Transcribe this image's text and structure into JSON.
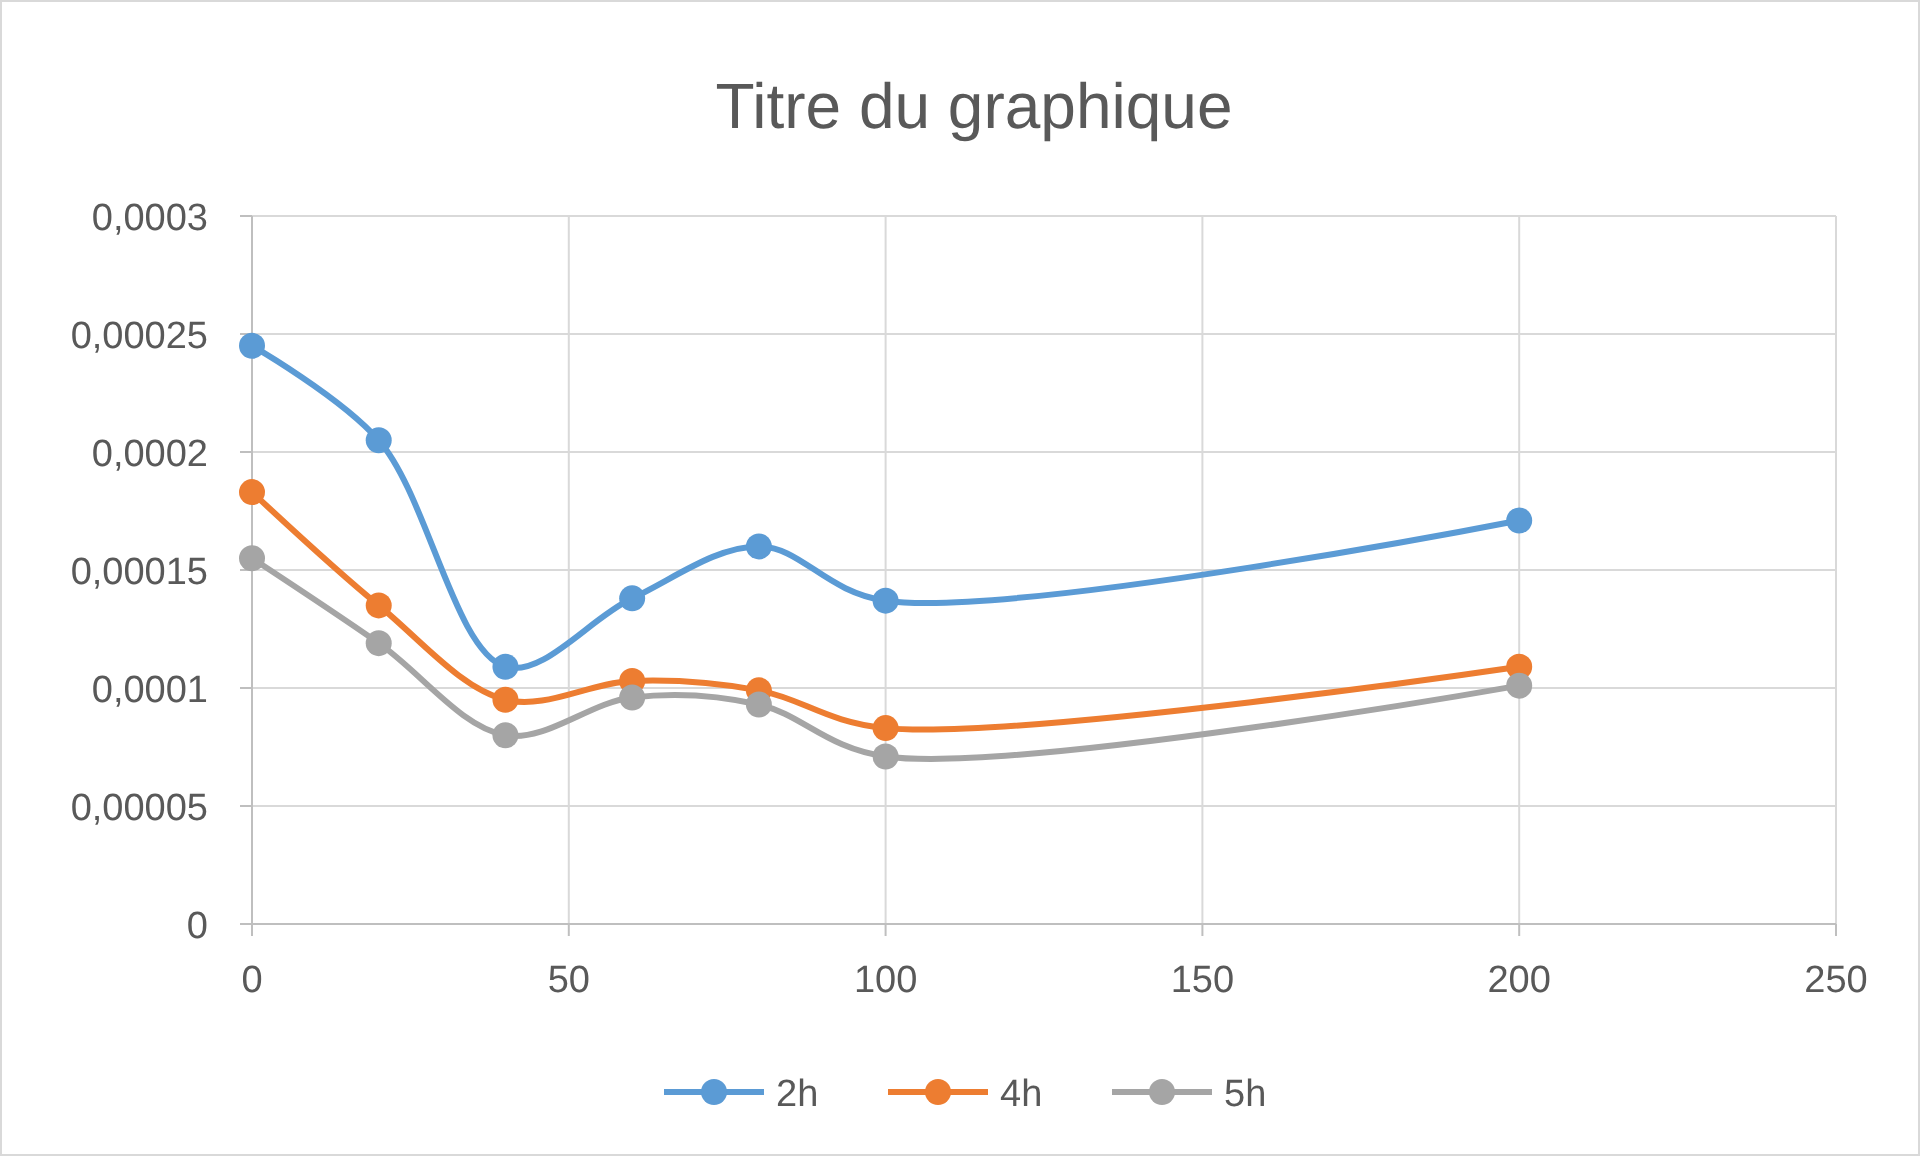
{
  "chart_data": {
    "type": "line",
    "title": "Titre du graphique",
    "x": [
      0,
      20,
      40,
      60,
      80,
      100,
      200
    ],
    "series": [
      {
        "name": "2h",
        "color": "#5b9bd5",
        "values": [
          0.000245,
          0.000205,
          0.000109,
          0.000138,
          0.00016,
          0.000137,
          0.000171
        ]
      },
      {
        "name": "4h",
        "color": "#ed7d31",
        "values": [
          0.000183,
          0.000135,
          9.5e-05,
          0.000103,
          9.9e-05,
          8.3e-05,
          0.000109
        ]
      },
      {
        "name": "5h",
        "color": "#a5a5a5",
        "values": [
          0.000155,
          0.000119,
          8e-05,
          9.6e-05,
          9.3e-05,
          7.1e-05,
          0.000101
        ]
      }
    ],
    "xlim": [
      0,
      250
    ],
    "xticks": [
      0,
      50,
      100,
      150,
      200,
      250
    ],
    "ylim": [
      0,
      0.0003
    ],
    "yticks": [
      {
        "value": 0,
        "label": "0"
      },
      {
        "value": 5e-05,
        "label": "0,00005"
      },
      {
        "value": 0.0001,
        "label": "0,0001"
      },
      {
        "value": 0.00015,
        "label": "0,00015"
      },
      {
        "value": 0.0002,
        "label": "0,0002"
      },
      {
        "value": 0.00025,
        "label": "0,00025"
      },
      {
        "value": 0.0003,
        "label": "0,0003"
      }
    ],
    "grid": true,
    "legend": "bottom",
    "marker": "circle",
    "line_style": "solid"
  }
}
